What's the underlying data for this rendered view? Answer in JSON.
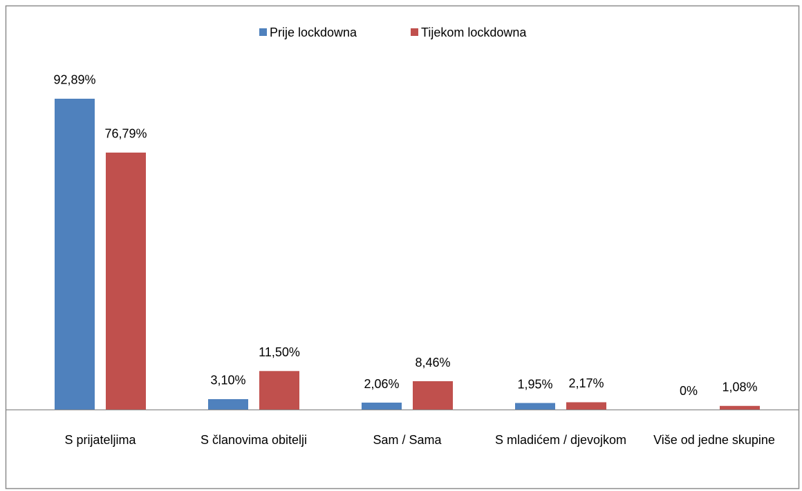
{
  "chart_data": {
    "type": "bar",
    "categories": [
      "S prijateljima",
      "S članovima obitelji",
      "Sam / Sama",
      "S mladićem / djevojkom",
      "Više od jedne skupine"
    ],
    "series": [
      {
        "name": "Prije lockdowna",
        "color": "#4f81bd",
        "values": [
          92.89,
          3.1,
          2.06,
          1.95,
          0
        ],
        "value_labels": [
          "92,89%",
          "3,10%",
          "2,06%",
          "1,95%",
          "0%"
        ]
      },
      {
        "name": "Tijekom lockdowna",
        "color": "#c0504d",
        "values": [
          76.79,
          11.5,
          8.46,
          2.17,
          1.08
        ],
        "value_labels": [
          "76,79%",
          "11,50%",
          "8,46%",
          "2,17%",
          "1,08%"
        ]
      }
    ],
    "ylim": [
      0,
      100
    ],
    "legend": "top"
  }
}
